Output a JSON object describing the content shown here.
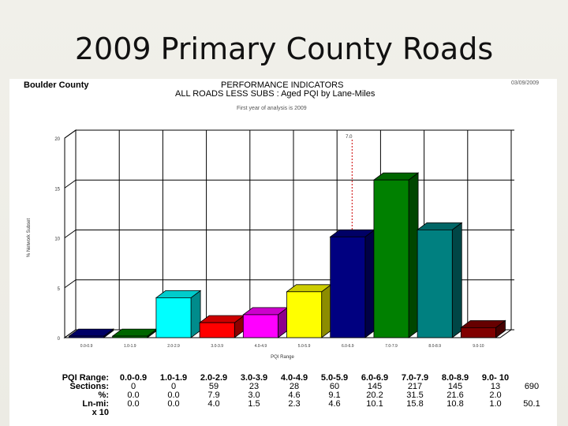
{
  "slide": {
    "title": "2009 Primary County Roads"
  },
  "report": {
    "county": "Boulder County",
    "heading": "PERFORMANCE INDICATORS",
    "subheading": "ALL ROADS LESS SUBS : Aged PQI by Lane-Miles",
    "year_note": "First year of analysis is 2009",
    "date": "03/09/2009"
  },
  "chart_data": {
    "type": "bar",
    "categories": [
      "0.0-0.9",
      "1.0-1.9",
      "2.0-2.9",
      "3.0-3.9",
      "4.0-4.9",
      "5.0-5.9",
      "6.0-6.9",
      "7.0-7.9",
      "8.0-8.9",
      "9.0-10"
    ],
    "values": [
      0.0,
      0.0,
      4.0,
      1.5,
      2.3,
      4.6,
      10.1,
      15.8,
      10.8,
      1.0
    ],
    "colors": [
      "#000080",
      "#008000",
      "#00ffff",
      "#ff0000",
      "#ff00ff",
      "#ffff00",
      "#000080",
      "#008000",
      "#008080",
      "#800000"
    ],
    "ylim": [
      0,
      20
    ],
    "yticks": [
      0,
      5,
      10,
      15,
      20
    ],
    "ylabel": "% Network Subset",
    "xlabel": "PQI Range",
    "marker_label": "7.0",
    "grid": true,
    "legend": "none",
    "bar_value_scale_note": "x 10"
  },
  "table": {
    "labels": [
      "PQI Range:",
      "Sections:",
      "%:",
      "Ln-mi:",
      "x 10"
    ],
    "ranges": [
      "0.0-0.9",
      "1.0-1.9",
      "2.0-2.9",
      "3.0-3.9",
      "4.0-4.9",
      "5.0-5.9",
      "6.0-6.9",
      "7.0-7.9",
      "8.0-8.9",
      "9.0- 10"
    ],
    "sections": [
      "0",
      "0",
      "59",
      "23",
      "28",
      "60",
      "145",
      "217",
      "145",
      "13"
    ],
    "percent": [
      "0.0",
      "0.0",
      "7.9",
      "3.0",
      "4.6",
      "9.1",
      "20.2",
      "31.5",
      "21.6",
      "2.0"
    ],
    "lane_miles": [
      "0.0",
      "0.0",
      "4.0",
      "1.5",
      "2.3",
      "4.6",
      "10.1",
      "15.8",
      "10.8",
      "1.0"
    ],
    "total_sections": "690",
    "total_lane_miles": "50.1"
  }
}
